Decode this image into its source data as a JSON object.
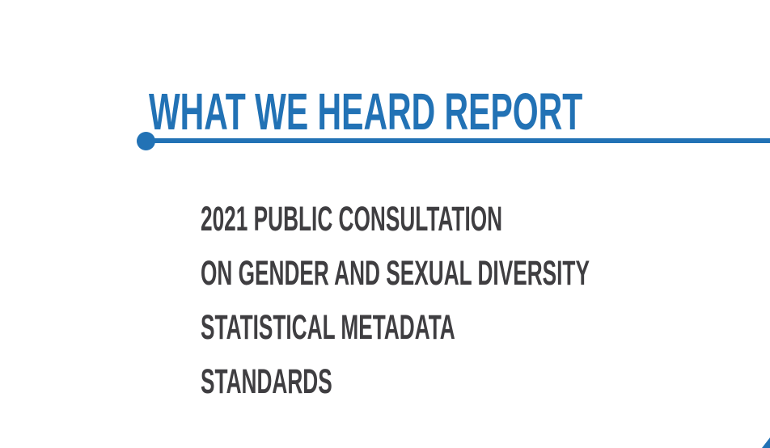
{
  "page": {
    "title": "WHAT WE HEARD REPORT",
    "subtitle_lines": [
      "2021 PUBLIC CONSULTATION",
      "ON GENDER AND SEXUAL DIVERSITY",
      "STATISTICAL METADATA",
      "STANDARDS"
    ],
    "colors": {
      "accent_blue": "#2272B5",
      "text_dark": "#3F3E41",
      "background": "#FFFFFF"
    }
  }
}
